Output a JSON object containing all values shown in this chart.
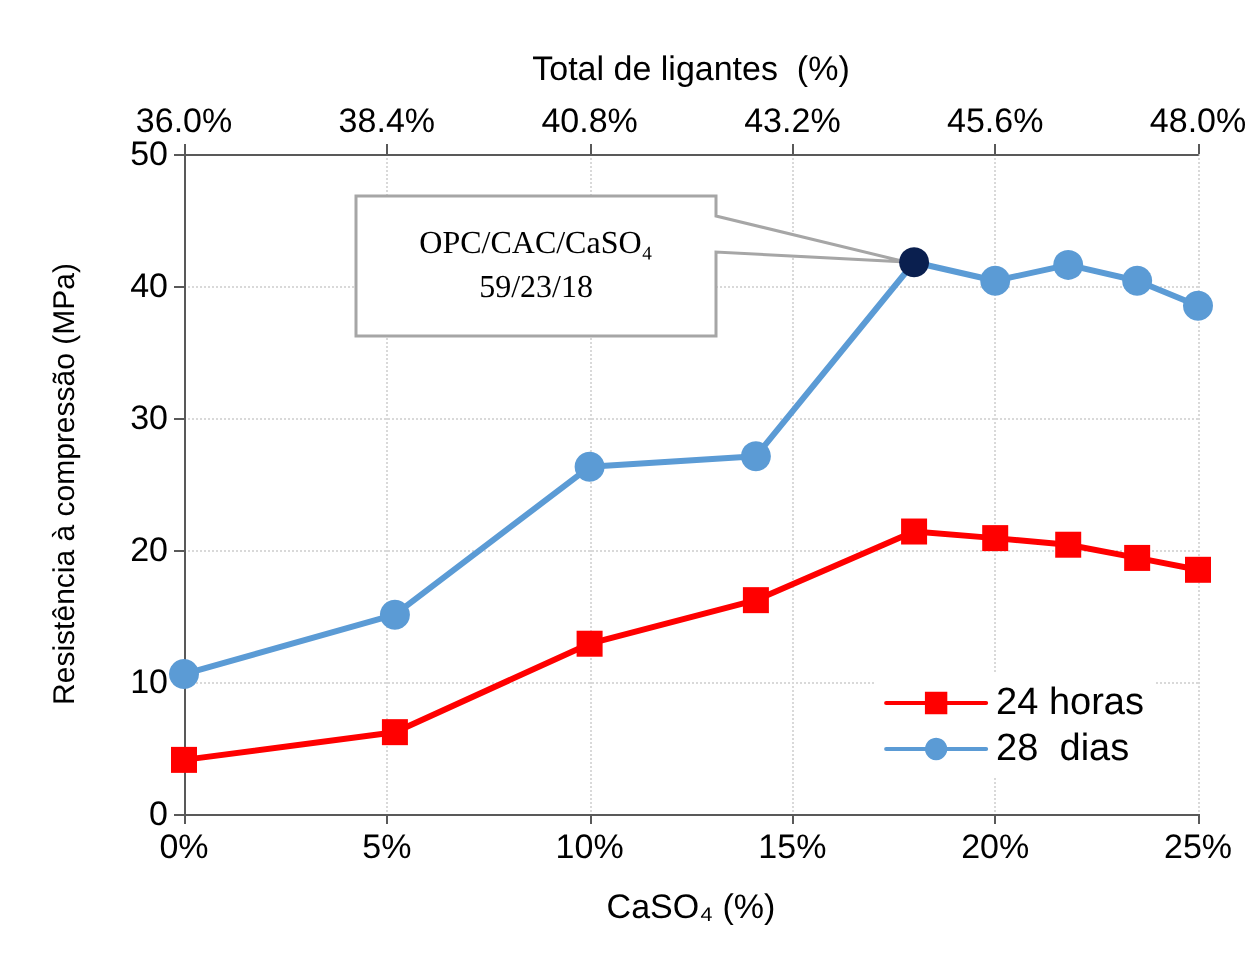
{
  "chart_data": {
    "type": "line",
    "xlabel": "CaSO₄ (%)",
    "ylabel": "Resistência à compressão (MPa)",
    "x2label": "Total de ligantes  (%)",
    "x": [
      0,
      5.2,
      10,
      14.1,
      18,
      20,
      21.8,
      23.5,
      25
    ],
    "series": [
      {
        "name": "24 horas",
        "color": "#ff0000",
        "marker": "square",
        "values": [
          4.1,
          6.2,
          12.9,
          16.2,
          21.4,
          20.9,
          20.4,
          19.4,
          18.5
        ]
      },
      {
        "name": "28  dias",
        "color": "#5b9bd5",
        "marker": "circle",
        "colors": [
          "#5b9bd5",
          "#5b9bd5",
          "#5b9bd5",
          "#5b9bd5",
          "#0a1f4f",
          "#5b9bd5",
          "#5b9bd5",
          "#5b9bd5",
          "#5b9bd5"
        ],
        "values": [
          10.6,
          15.1,
          26.3,
          27.1,
          41.8,
          40.4,
          41.6,
          40.4,
          38.5
        ]
      }
    ],
    "xlim": [
      0,
      25
    ],
    "xticks": [
      {
        "value": 0,
        "label": "0%"
      },
      {
        "value": 5,
        "label": "5%"
      },
      {
        "value": 10,
        "label": "10%"
      },
      {
        "value": 15,
        "label": "15%"
      },
      {
        "value": 20,
        "label": "20%"
      },
      {
        "value": 25,
        "label": "25%"
      }
    ],
    "x2lim": [
      36,
      48
    ],
    "x2ticks": [
      {
        "value": 36,
        "label": "36.0%"
      },
      {
        "value": 38.4,
        "label": "38.4%"
      },
      {
        "value": 40.8,
        "label": "40.8%"
      },
      {
        "value": 43.2,
        "label": "43.2%"
      },
      {
        "value": 45.6,
        "label": "45.6%"
      },
      {
        "value": 48,
        "label": "48.0%"
      }
    ],
    "ylim": [
      0,
      50
    ],
    "yticks": [
      0,
      10,
      20,
      30,
      40,
      50
    ],
    "annotations": [
      "OPC/CAC/CaSO₄\n59/23/18"
    ],
    "grid": true,
    "legend": "bottom right",
    "line_style": "solid"
  }
}
